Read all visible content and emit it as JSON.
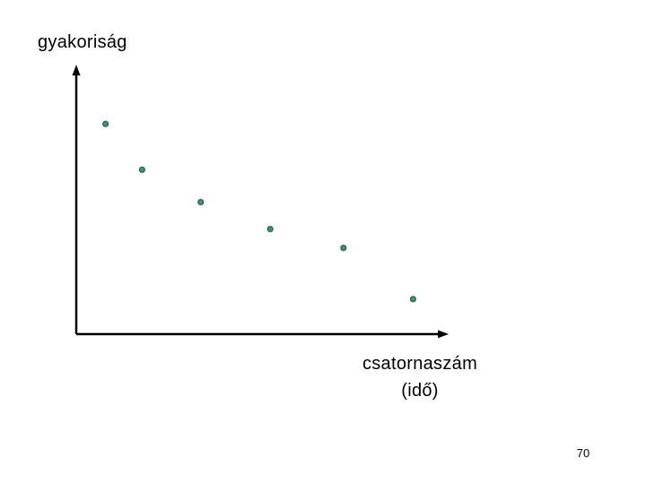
{
  "slide": {
    "page_number": "70"
  },
  "chart_data": {
    "type": "scatter",
    "title": "",
    "ylabel": "gyakoriság",
    "xlabel_lines": [
      "csatornaszám",
      "(idő)"
    ],
    "axis_ticks": "none",
    "grid": false,
    "legend": "none",
    "xlim": [
      0,
      10
    ],
    "ylim": [
      0,
      10
    ],
    "marker_color": "#3a9a6a",
    "marker_edge_color": "#1f4a34",
    "axis_color": "#000000",
    "points": [
      {
        "x": 0.8,
        "y": 7.8
      },
      {
        "x": 1.8,
        "y": 6.1
      },
      {
        "x": 3.4,
        "y": 4.9
      },
      {
        "x": 5.3,
        "y": 3.9
      },
      {
        "x": 7.3,
        "y": 3.2
      },
      {
        "x": 9.2,
        "y": 1.3
      }
    ]
  }
}
